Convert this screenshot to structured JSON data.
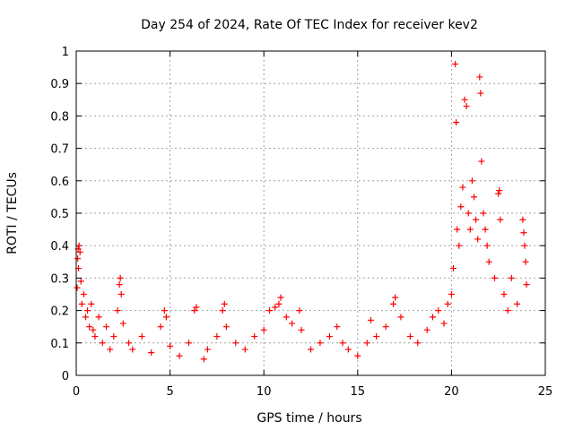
{
  "chart_data": {
    "type": "scatter",
    "title": "Day 254 of 2024, Rate Of TEC Index for receiver kev2",
    "xlabel": "GPS time / hours",
    "ylabel": "ROTI / TECUs",
    "xlim": [
      0,
      25
    ],
    "ylim": [
      0,
      1
    ],
    "x_ticks": [
      0,
      5,
      10,
      15,
      20,
      25
    ],
    "y_ticks": [
      0,
      0.1,
      0.2,
      0.3,
      0.4,
      0.5,
      0.6,
      0.7,
      0.8,
      0.9,
      1
    ],
    "x_tick_labels": [
      "0",
      "5",
      "10",
      "15",
      "20",
      "25"
    ],
    "y_tick_labels": [
      "0",
      "0.1",
      "0.2",
      "0.3",
      "0.4",
      "0.5",
      "0.6",
      "0.7",
      "0.8",
      "0.9",
      "1"
    ],
    "grid": true,
    "marker": "+",
    "marker_color": "#ff0000",
    "series": [
      {
        "points": [
          [
            0.05,
            0.27
          ],
          [
            0.08,
            0.36
          ],
          [
            0.1,
            0.39
          ],
          [
            0.15,
            0.4
          ],
          [
            0.2,
            0.38
          ],
          [
            0.12,
            0.33
          ],
          [
            0.25,
            0.29
          ],
          [
            0.3,
            0.22
          ],
          [
            0.4,
            0.25
          ],
          [
            0.5,
            0.18
          ],
          [
            0.6,
            0.2
          ],
          [
            0.7,
            0.15
          ],
          [
            0.8,
            0.22
          ],
          [
            0.9,
            0.14
          ],
          [
            1.0,
            0.12
          ],
          [
            1.2,
            0.18
          ],
          [
            1.4,
            0.1
          ],
          [
            1.6,
            0.15
          ],
          [
            1.8,
            0.08
          ],
          [
            2.0,
            0.12
          ],
          [
            2.2,
            0.2
          ],
          [
            2.3,
            0.28
          ],
          [
            2.35,
            0.3
          ],
          [
            2.4,
            0.25
          ],
          [
            2.5,
            0.16
          ],
          [
            2.8,
            0.1
          ],
          [
            3.0,
            0.08
          ],
          [
            3.5,
            0.12
          ],
          [
            4.0,
            0.07
          ],
          [
            4.5,
            0.15
          ],
          [
            4.7,
            0.2
          ],
          [
            4.8,
            0.18
          ],
          [
            5.0,
            0.09
          ],
          [
            5.5,
            0.06
          ],
          [
            6.0,
            0.1
          ],
          [
            6.3,
            0.2
          ],
          [
            6.4,
            0.21
          ],
          [
            6.8,
            0.05
          ],
          [
            7.0,
            0.08
          ],
          [
            7.5,
            0.12
          ],
          [
            7.8,
            0.2
          ],
          [
            7.9,
            0.22
          ],
          [
            8.0,
            0.15
          ],
          [
            8.5,
            0.1
          ],
          [
            9.0,
            0.08
          ],
          [
            9.5,
            0.12
          ],
          [
            10.0,
            0.14
          ],
          [
            10.3,
            0.2
          ],
          [
            10.6,
            0.21
          ],
          [
            10.8,
            0.22
          ],
          [
            10.9,
            0.24
          ],
          [
            11.2,
            0.18
          ],
          [
            11.5,
            0.16
          ],
          [
            11.9,
            0.2
          ],
          [
            12.0,
            0.14
          ],
          [
            12.5,
            0.08
          ],
          [
            13.0,
            0.1
          ],
          [
            13.5,
            0.12
          ],
          [
            13.9,
            0.15
          ],
          [
            14.2,
            0.1
          ],
          [
            14.5,
            0.08
          ],
          [
            15.0,
            0.06
          ],
          [
            15.5,
            0.1
          ],
          [
            15.7,
            0.17
          ],
          [
            16.0,
            0.12
          ],
          [
            16.5,
            0.15
          ],
          [
            16.9,
            0.22
          ],
          [
            17.0,
            0.24
          ],
          [
            17.3,
            0.18
          ],
          [
            17.8,
            0.12
          ],
          [
            18.2,
            0.1
          ],
          [
            18.7,
            0.14
          ],
          [
            19.0,
            0.18
          ],
          [
            19.3,
            0.2
          ],
          [
            19.6,
            0.16
          ],
          [
            19.8,
            0.22
          ],
          [
            20.0,
            0.25
          ],
          [
            20.1,
            0.33
          ],
          [
            20.2,
            0.96
          ],
          [
            20.25,
            0.78
          ],
          [
            20.3,
            0.45
          ],
          [
            20.4,
            0.4
          ],
          [
            20.5,
            0.52
          ],
          [
            20.6,
            0.58
          ],
          [
            20.7,
            0.85
          ],
          [
            20.8,
            0.83
          ],
          [
            20.9,
            0.5
          ],
          [
            21.0,
            0.45
          ],
          [
            21.1,
            0.6
          ],
          [
            21.2,
            0.55
          ],
          [
            21.3,
            0.48
          ],
          [
            21.4,
            0.42
          ],
          [
            21.5,
            0.92
          ],
          [
            21.55,
            0.87
          ],
          [
            21.6,
            0.66
          ],
          [
            21.7,
            0.5
          ],
          [
            21.8,
            0.45
          ],
          [
            21.9,
            0.4
          ],
          [
            22.0,
            0.35
          ],
          [
            22.3,
            0.3
          ],
          [
            22.5,
            0.56
          ],
          [
            22.55,
            0.57
          ],
          [
            22.6,
            0.48
          ],
          [
            22.8,
            0.25
          ],
          [
            23.0,
            0.2
          ],
          [
            23.2,
            0.3
          ],
          [
            23.5,
            0.22
          ],
          [
            23.8,
            0.48
          ],
          [
            23.85,
            0.44
          ],
          [
            23.9,
            0.4
          ],
          [
            23.95,
            0.35
          ],
          [
            24.0,
            0.28
          ]
        ]
      }
    ]
  }
}
